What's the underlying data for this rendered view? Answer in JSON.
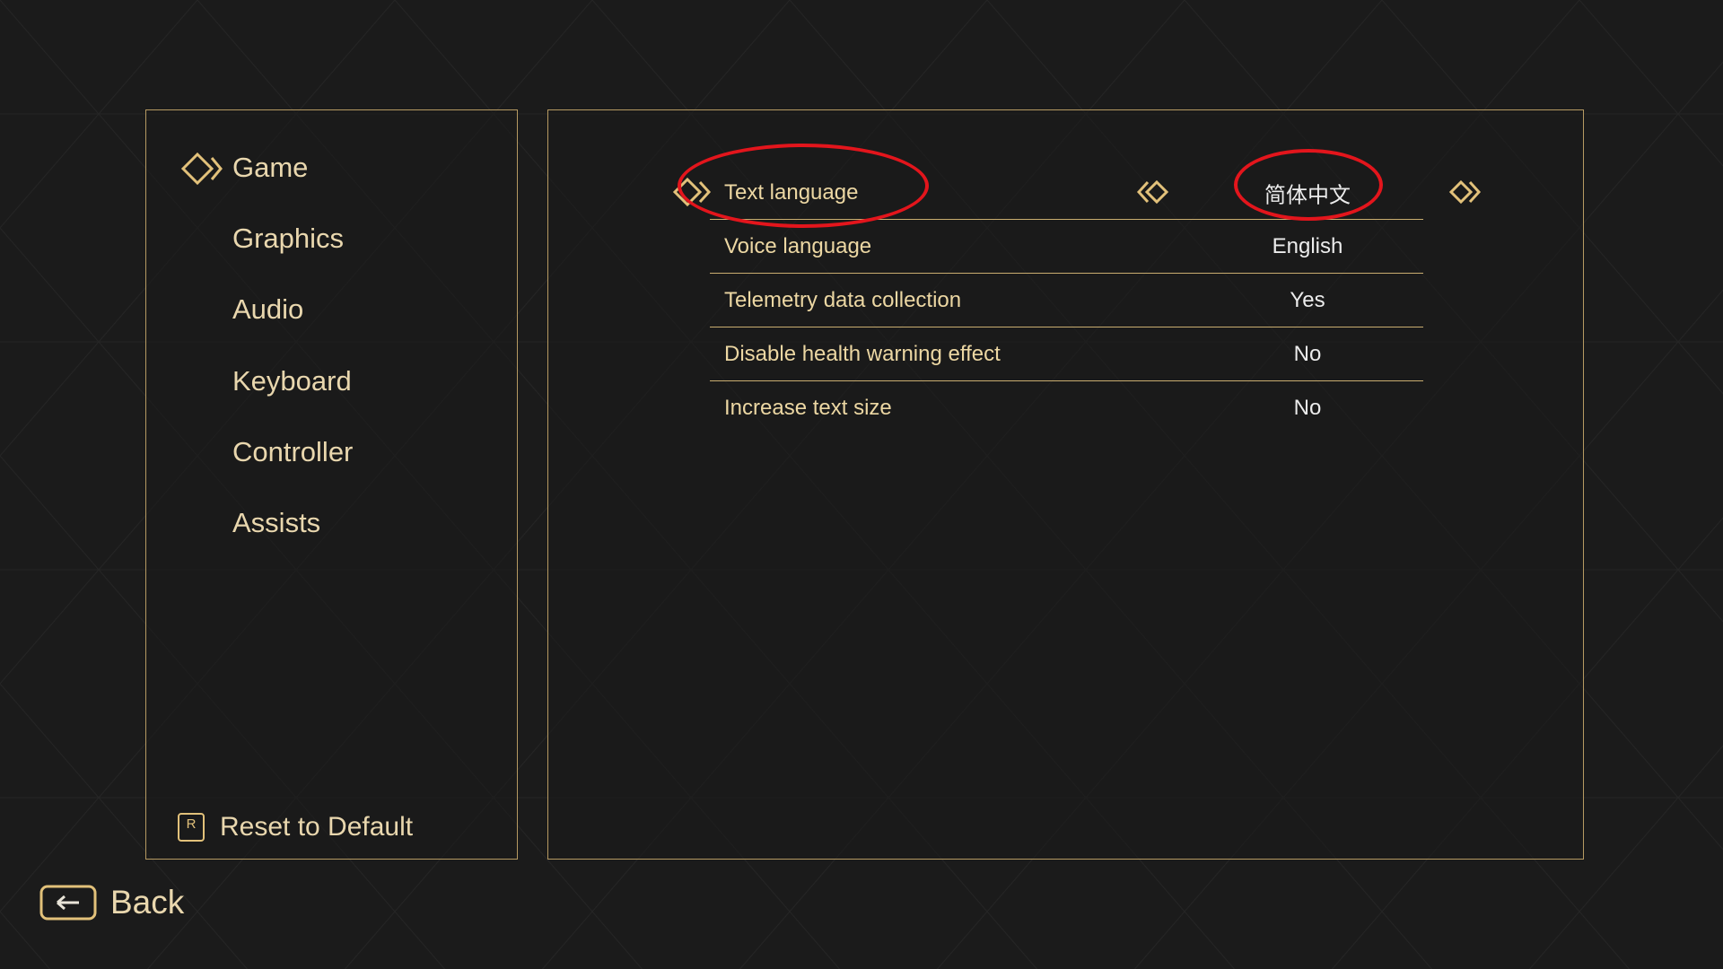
{
  "sidebar": {
    "items": [
      {
        "label": "Game",
        "selected": true
      },
      {
        "label": "Graphics"
      },
      {
        "label": "Audio"
      },
      {
        "label": "Keyboard"
      },
      {
        "label": "Controller"
      },
      {
        "label": "Assists"
      }
    ],
    "reset": {
      "key": "R",
      "label": "Reset to Default"
    }
  },
  "settings": [
    {
      "label": "Text language",
      "value": "简体中文",
      "selected": true
    },
    {
      "label": "Voice language",
      "value": "English"
    },
    {
      "label": "Telemetry data collection",
      "value": "Yes"
    },
    {
      "label": "Disable health warning effect",
      "value": "No"
    },
    {
      "label": "Increase text size",
      "value": "No"
    }
  ],
  "back": {
    "label": "Back"
  },
  "colors": {
    "accent": "#e2c17a",
    "annotation": "#e3151c",
    "background": "#1b1b1b"
  }
}
